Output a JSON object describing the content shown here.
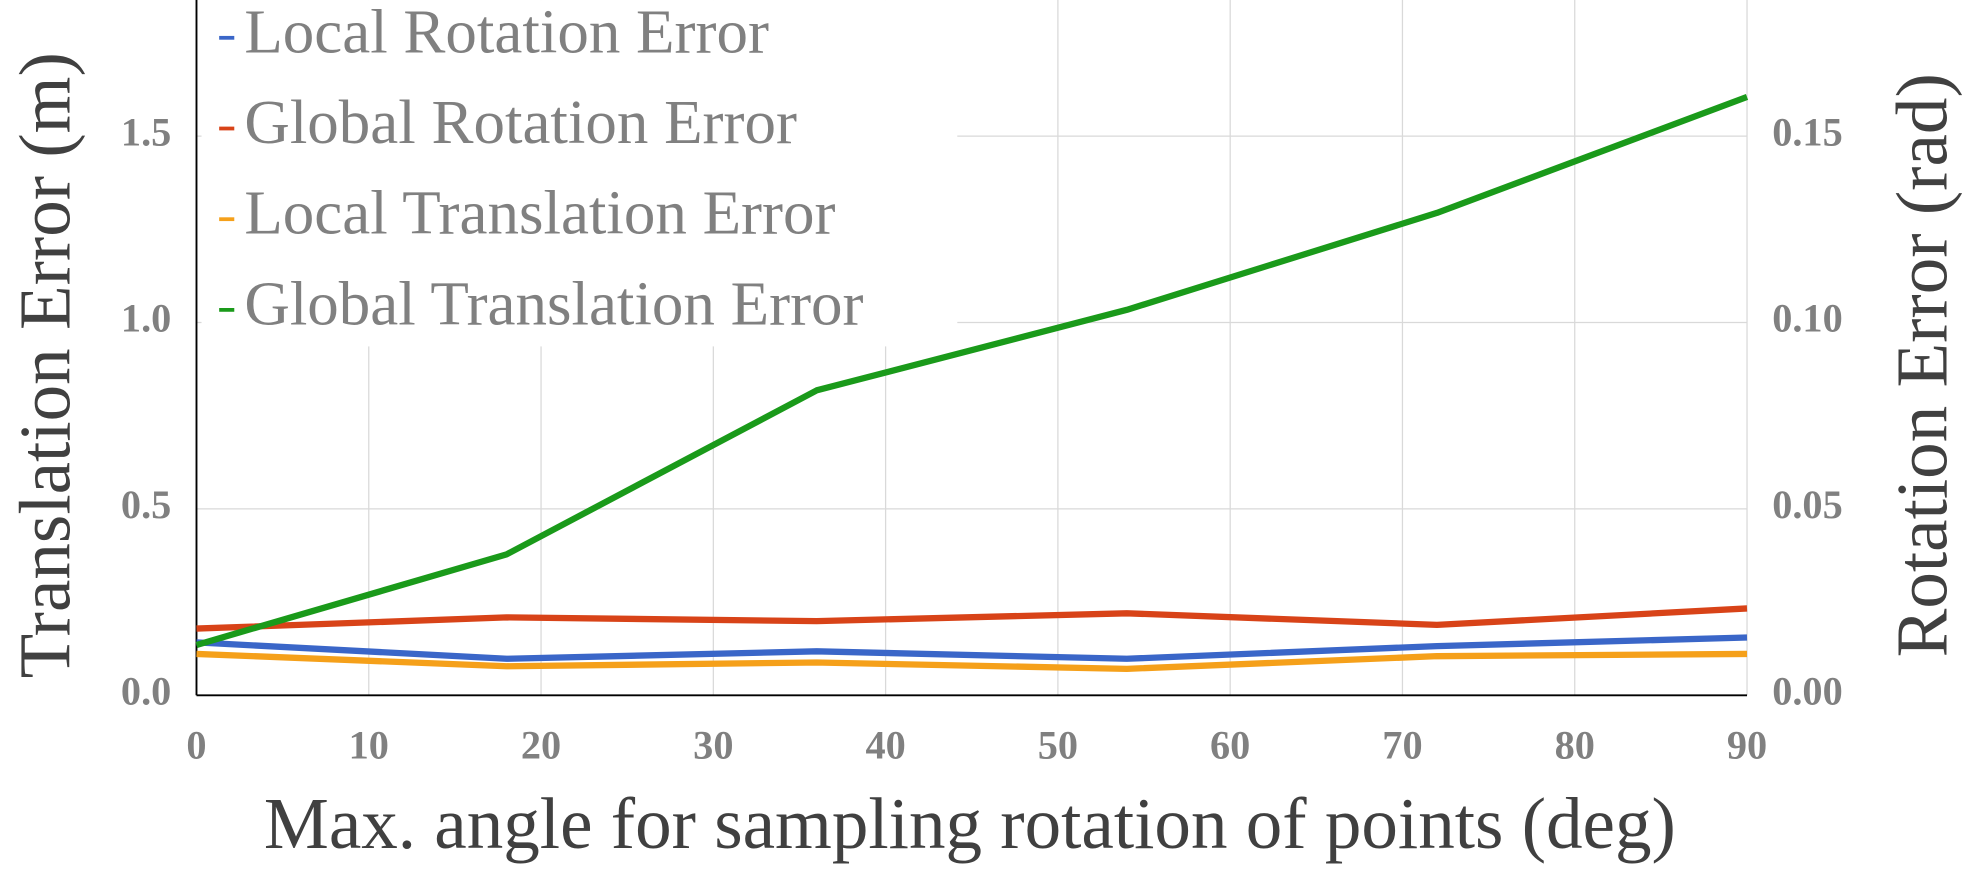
{
  "chart_data": {
    "type": "line",
    "xlabel": "Max. angle for sampling rotation of points (deg)",
    "ylabel": "Translation Error (m)",
    "y2label": "Rotation Error (rad)",
    "x": [
      0,
      18,
      36,
      54,
      72,
      90
    ],
    "xlim": [
      0,
      90
    ],
    "xticks": [
      0,
      10,
      20,
      30,
      40,
      50,
      60,
      70,
      80,
      90
    ],
    "ylim": [
      0,
      1.865
    ],
    "yticks": [
      {
        "value": 0,
        "label": "0.0"
      },
      0.5,
      {
        "value": 1,
        "label": "1.0"
      },
      1.5
    ],
    "y2lim": [
      0,
      0.1865
    ],
    "y2ticks": [
      {
        "value": 0,
        "label": "0.00"
      },
      {
        "value": 0.05,
        "label": "0.05"
      },
      {
        "value": 0.1,
        "label": "0.10"
      },
      {
        "value": 0.15,
        "label": "0.15"
      }
    ],
    "grid": true,
    "legend": "upper left",
    "series": [
      {
        "name": "Local Rotation Error",
        "color": "#3a66c8",
        "axis": "y2",
        "values": [
          0.0142,
          0.0098,
          0.0118,
          0.0098,
          0.0132,
          0.0155
        ]
      },
      {
        "name": "Global Rotation Error",
        "color": "#d84318",
        "axis": "y2",
        "values": [
          0.0179,
          0.0209,
          0.0199,
          0.022,
          0.0189,
          0.0233
        ]
      },
      {
        "name": "Local Translation Error",
        "color": "#f5a01a",
        "values": [
          0.111,
          0.078,
          0.088,
          0.071,
          0.105,
          0.111
        ]
      },
      {
        "name": "Global Translation Error",
        "color": "#1a9a1a",
        "values": [
          0.135,
          0.378,
          0.818,
          1.034,
          1.294,
          1.605
        ]
      }
    ]
  }
}
